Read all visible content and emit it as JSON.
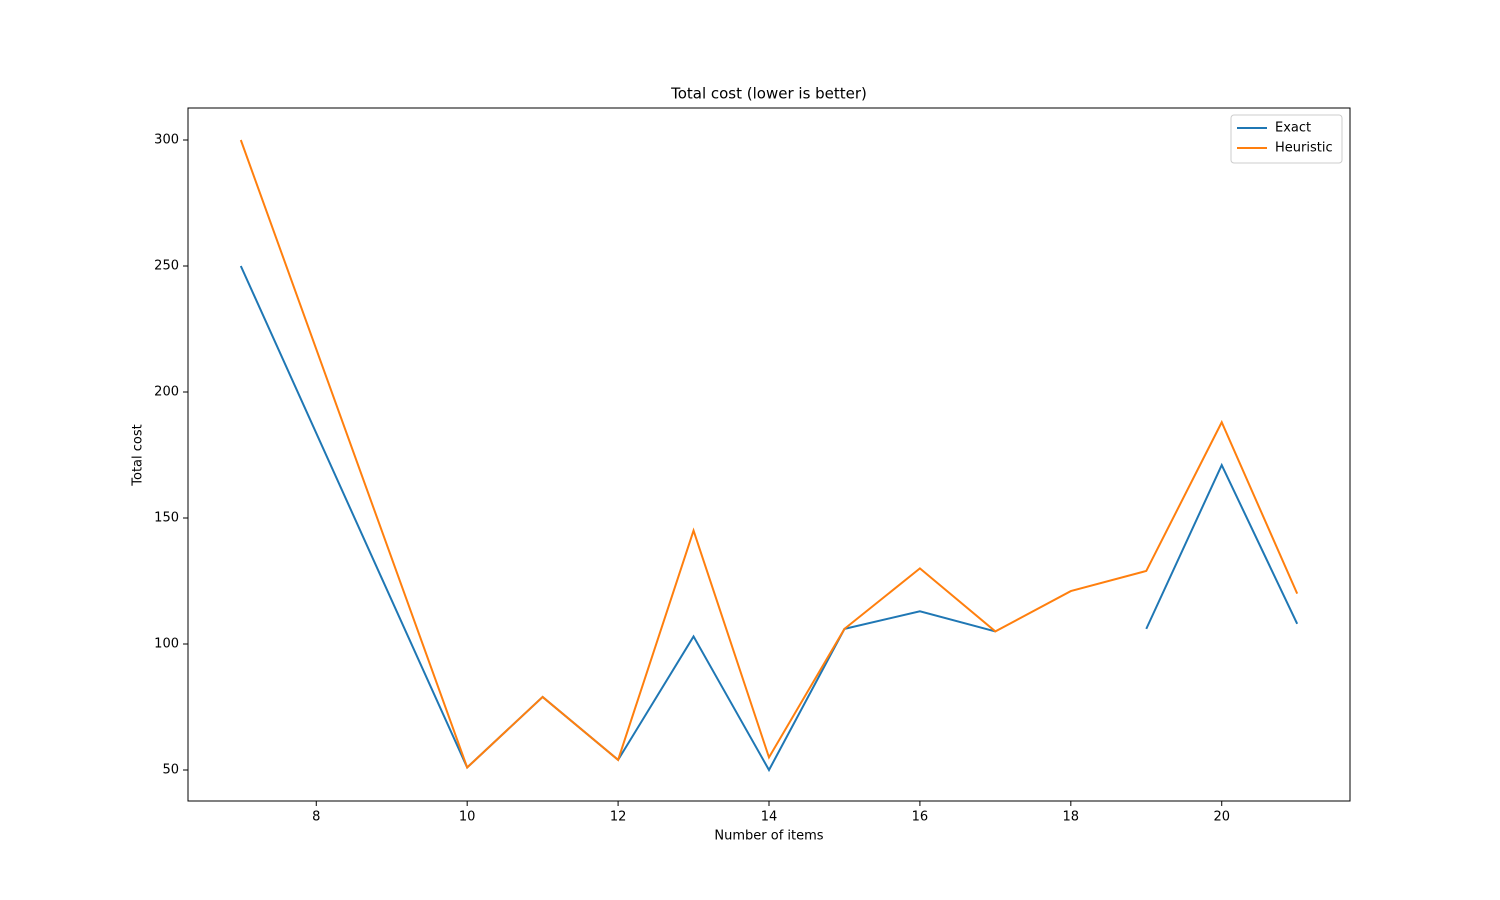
{
  "chart_data": {
    "type": "line",
    "title": "Total cost (lower is better)",
    "x_label": "Number of items",
    "y_label": "Total cost",
    "x": [
      7,
      10,
      11,
      12,
      13,
      14,
      15,
      16,
      17,
      18,
      19,
      20,
      21
    ],
    "series": [
      {
        "name": "Exact",
        "color": "#1f77b4",
        "values": [
          250,
          51,
          79,
          54,
          103,
          50,
          106,
          113,
          105,
          null,
          106,
          171,
          108
        ]
      },
      {
        "name": "Heuristic",
        "color": "#ff7f0e",
        "values": [
          300,
          51,
          79,
          54,
          145,
          55,
          106,
          130,
          105,
          121,
          129,
          188,
          120
        ]
      }
    ],
    "xlim": [
      6.3,
      21.7
    ],
    "ylim": [
      37.7,
      312.7
    ],
    "xticks": [
      8,
      10,
      12,
      14,
      16,
      18,
      20
    ],
    "yticks": [
      50,
      100,
      150,
      200,
      250,
      300
    ],
    "legend": "upper right",
    "grid": false
  }
}
